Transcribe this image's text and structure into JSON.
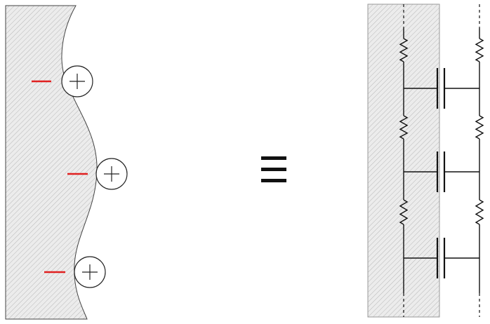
{
  "colors": {
    "background": "#ffffff",
    "hatch_fill": "#ececec",
    "hatch_line": "#b8b8b8",
    "outline": "#444444",
    "wire": "#111111",
    "negative_charge": "#e02020",
    "positive_circle": "#222222"
  },
  "symbols": {
    "equivalence": "≡",
    "charge_pairs": 3,
    "circuit_stages": 3
  }
}
